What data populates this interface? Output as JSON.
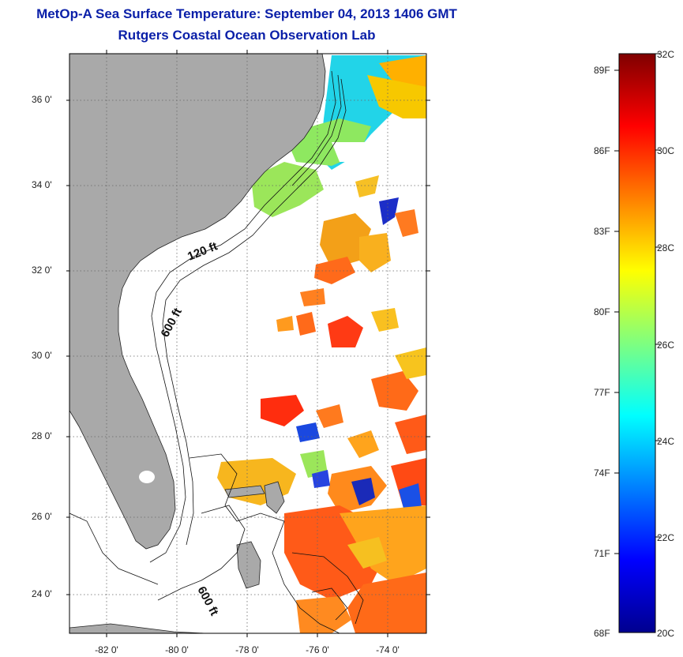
{
  "title": {
    "line1": "MetOp-A Sea Surface Temperature:  September 04, 2013 1406 GMT",
    "line2": "Rutgers Coastal Ocean Observation Lab"
  },
  "map": {
    "lat_ticks": [
      {
        "value": 36,
        "label": "36 0'"
      },
      {
        "value": 34,
        "label": "34 0'"
      },
      {
        "value": 32,
        "label": "32 0'"
      },
      {
        "value": 30,
        "label": "30 0'"
      },
      {
        "value": 28,
        "label": "28 0'"
      },
      {
        "value": 26,
        "label": "26 0'"
      },
      {
        "value": 24,
        "label": "24 0'"
      }
    ],
    "lon_ticks": [
      {
        "value": -82,
        "label": "-82 0'"
      },
      {
        "value": -80,
        "label": "-80 0'"
      },
      {
        "value": -78,
        "label": "-78 0'"
      },
      {
        "value": -76,
        "label": "-76 0'"
      },
      {
        "value": -74,
        "label": "-74 0'"
      }
    ],
    "contour_labels": [
      "120 ft",
      "600 ft",
      "600 ft"
    ],
    "colors": {
      "land": "#a9a9a9",
      "ocean_cloud": "#ffffff"
    }
  },
  "colorbar": {
    "fahrenheit_labels": [
      "89F",
      "86F",
      "83F",
      "80F",
      "77F",
      "74F",
      "71F",
      "68F"
    ],
    "celsius_labels": [
      "32C",
      "30C",
      "28C",
      "26C",
      "24C",
      "22C",
      "20C"
    ],
    "range_c": [
      20,
      32
    ]
  }
}
